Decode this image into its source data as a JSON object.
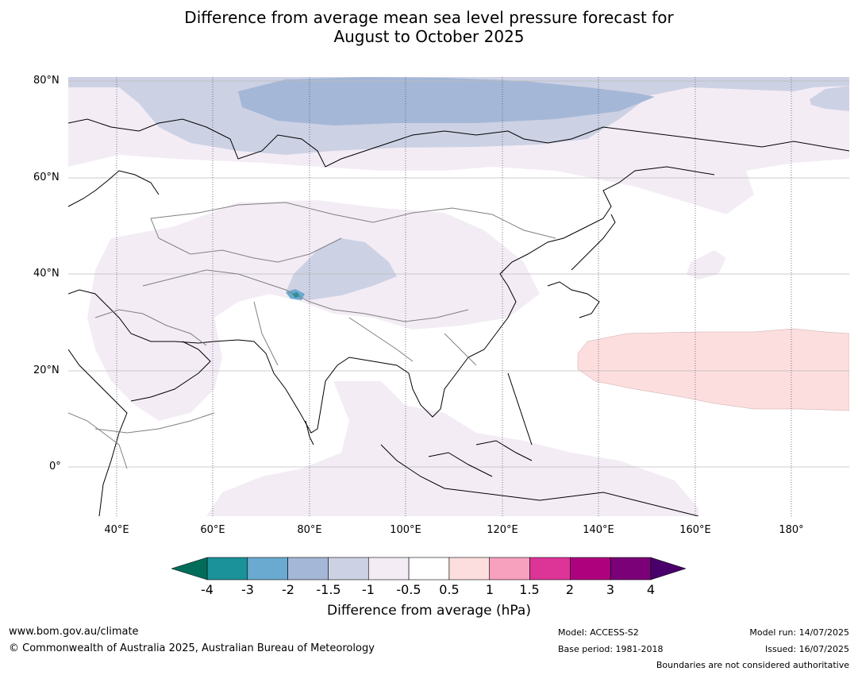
{
  "title": {
    "line1": "Difference from average mean sea level pressure forecast for",
    "line2": "August to October 2025"
  },
  "map": {
    "lat_labels": [
      "80°N",
      "60°N",
      "40°N",
      "20°N",
      "0°"
    ],
    "lon_labels": [
      "40°E",
      "60°E",
      "80°E",
      "100°E",
      "120°E",
      "140°E",
      "160°E",
      "180°"
    ]
  },
  "colorbar": {
    "title": "Difference from average (hPa)",
    "ticks": [
      "-4",
      "-3",
      "-2",
      "-1.5",
      "-1",
      "-0.5",
      "0.5",
      "1",
      "1.5",
      "2",
      "3",
      "4"
    ],
    "colors": [
      "#1b9199",
      "#6aaad1",
      "#a4b7d6",
      "#cdd1e4",
      "#f3ecf5",
      "#ffffff",
      "#fddede",
      "#f8a1bf",
      "#dd3497",
      "#ae017e",
      "#7a0177"
    ],
    "under_color": "#016c59",
    "over_color": "#49006a"
  },
  "footer": {
    "website": "www.bom.gov.au/climate",
    "copyright": "© Commonwealth of Australia 2025, Australian Bureau of Meteorology",
    "model": "Model: ACCESS-S2",
    "base_period": "Base period: 1981-2018",
    "model_run": "Model run: 14/07/2025",
    "issued": "Issued: 16/07/2025",
    "disclaimer": "Boundaries are not considered authoritative"
  }
}
